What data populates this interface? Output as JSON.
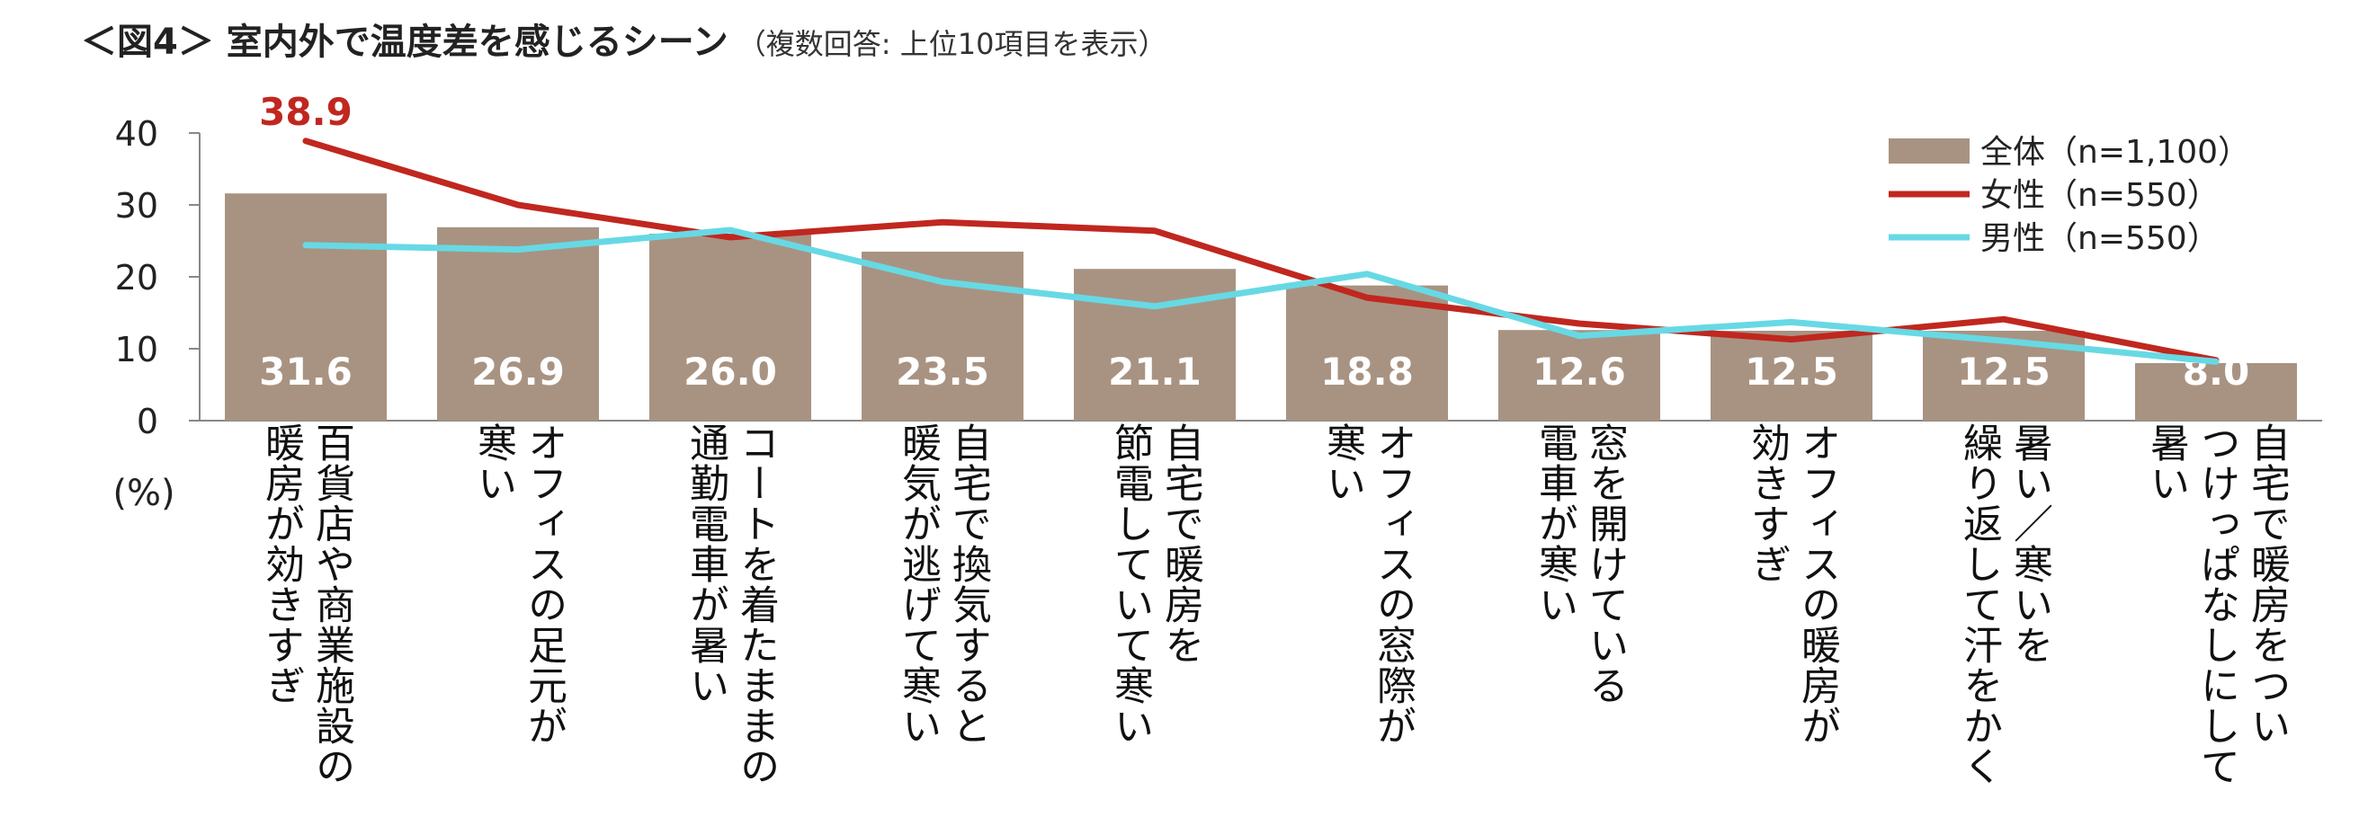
{
  "title": "＜図4＞ 室内外で温度差を感じるシーン",
  "subtitle": "（複数回答: 上位10項目を表示）",
  "colors": {
    "bar": "#a89382",
    "female": "#c0271f",
    "male": "#67d9e4",
    "axis": "#888888"
  },
  "chart_data": {
    "type": "bar",
    "ylabel": "(%)",
    "ylim": [
      0,
      40
    ],
    "yticks": [
      "0",
      "10",
      "20",
      "30",
      "40"
    ],
    "grid": false,
    "legend_position": "top-right",
    "categories": [
      "百貨店や商業施設の\n暖房が効きすぎ",
      "オフィスの足元が\n寒い",
      "コートを着たままの\n通勤電車が暑い",
      "自宅で換気すると\n暖気が逃げて寒い",
      "自宅で暖房を\n節電していて寒い",
      "オフィスの窓際が\n寒い",
      "窓を開けている\n電車が寒い",
      "オフィスの暖房が\n効きすぎ",
      "暑い／寒いを\n繰り返して汗をかく",
      "自宅で暖房をつい\nつけっぱなしにして\n暑い"
    ],
    "series": [
      {
        "name": "全体（n=1,100）",
        "type": "bar",
        "values": [
          31.6,
          26.9,
          26.0,
          23.5,
          21.1,
          18.8,
          12.6,
          12.5,
          12.5,
          8.0
        ],
        "labels": [
          "31.6",
          "26.9",
          "26.0",
          "23.5",
          "21.1",
          "18.8",
          "12.6",
          "12.5",
          "12.5",
          "8.0"
        ]
      },
      {
        "name": "女性（n=550）",
        "type": "line",
        "values": [
          38.9,
          30.0,
          25.5,
          27.6,
          26.4,
          17.1,
          13.5,
          11.3,
          14.1,
          8.4
        ],
        "labels": [
          "38.9"
        ]
      },
      {
        "name": "男性（n=550）",
        "type": "line",
        "values": [
          24.4,
          23.8,
          26.5,
          19.3,
          15.9,
          20.4,
          11.8,
          13.7,
          11.1,
          8.2
        ]
      }
    ]
  }
}
